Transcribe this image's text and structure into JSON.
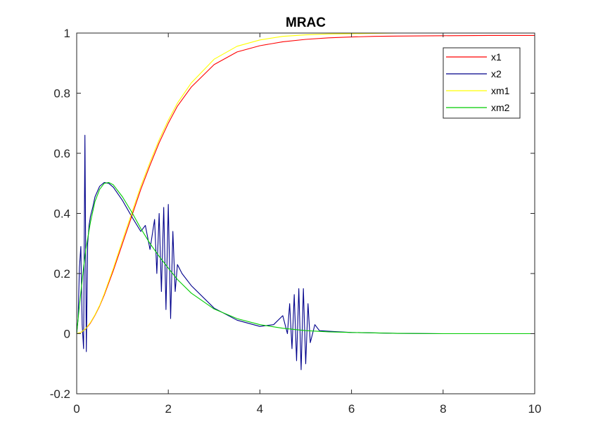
{
  "figure": {
    "background": "#ffffff",
    "axes_color": "#262626"
  },
  "chart_data": {
    "type": "line",
    "title": "MRAC",
    "xlabel": "",
    "ylabel": "",
    "xlim": [
      0,
      10
    ],
    "ylim": [
      -0.2,
      1
    ],
    "xticks": [
      0,
      2,
      4,
      6,
      8,
      10
    ],
    "yticks": [
      -0.2,
      0,
      0.2,
      0.4,
      0.6,
      0.8,
      1
    ],
    "xtick_labels": [
      "0",
      "2",
      "4",
      "6",
      "8",
      "10"
    ],
    "ytick_labels": [
      "-0.2",
      "0",
      "0.2",
      "0.4",
      "0.6",
      "0.8",
      "1"
    ],
    "grid": false,
    "legend_position": "top-right",
    "series": [
      {
        "name": "x1",
        "color": "#ff0000",
        "x": [
          0,
          0.1,
          0.2,
          0.3,
          0.4,
          0.5,
          0.6,
          0.8,
          1.0,
          1.2,
          1.4,
          1.6,
          1.8,
          2.0,
          2.2,
          2.5,
          3.0,
          3.5,
          4.0,
          4.5,
          5.0,
          5.5,
          6.0,
          6.5,
          7.0,
          8.0,
          9.0,
          10.0
        ],
        "y": [
          0,
          0.005,
          0.016,
          0.035,
          0.061,
          0.092,
          0.128,
          0.21,
          0.3,
          0.39,
          0.48,
          0.56,
          0.635,
          0.7,
          0.757,
          0.82,
          0.895,
          0.937,
          0.958,
          0.971,
          0.979,
          0.984,
          0.987,
          0.989,
          0.99,
          0.991,
          0.992,
          0.992
        ]
      },
      {
        "name": "x2",
        "color": "#00008b",
        "x": [
          0,
          0.03,
          0.06,
          0.09,
          0.12,
          0.15,
          0.18,
          0.21,
          0.24,
          0.27,
          0.3,
          0.35,
          0.4,
          0.5,
          0.6,
          0.7,
          0.8,
          1.0,
          1.2,
          1.4,
          1.5,
          1.6,
          1.7,
          1.75,
          1.8,
          1.85,
          1.9,
          1.95,
          2.0,
          2.05,
          2.1,
          2.15,
          2.2,
          2.3,
          2.5,
          3.0,
          3.5,
          4.0,
          4.3,
          4.5,
          4.6,
          4.65,
          4.7,
          4.75,
          4.8,
          4.85,
          4.9,
          4.95,
          5.0,
          5.05,
          5.1,
          5.2,
          5.3,
          5.5,
          6.0,
          7.0,
          8.0,
          9.0,
          10.0
        ],
        "y": [
          0,
          0.05,
          0.22,
          0.29,
          0.03,
          -0.05,
          0.66,
          -0.06,
          0.3,
          0.36,
          0.39,
          0.42,
          0.455,
          0.49,
          0.503,
          0.5,
          0.487,
          0.443,
          0.39,
          0.34,
          0.36,
          0.28,
          0.38,
          0.2,
          0.4,
          0.14,
          0.42,
          0.08,
          0.43,
          0.05,
          0.34,
          0.14,
          0.23,
          0.2,
          0.16,
          0.085,
          0.045,
          0.024,
          0.03,
          0.06,
          0.0,
          0.1,
          -0.05,
          0.13,
          -0.09,
          0.15,
          -0.12,
          0.15,
          -0.1,
          0.1,
          -0.03,
          0.03,
          0.01,
          0.008,
          0.004,
          0.001,
          0.0,
          0.0,
          0.0
        ]
      },
      {
        "name": "xm1",
        "color": "#ffff00",
        "x": [
          0,
          0.1,
          0.2,
          0.3,
          0.4,
          0.5,
          0.6,
          0.8,
          1.0,
          1.2,
          1.4,
          1.6,
          1.8,
          2.0,
          2.2,
          2.5,
          3.0,
          3.5,
          4.0,
          4.5,
          5.0,
          5.5,
          6.0,
          6.5,
          7.0,
          8.0,
          9.0,
          10.0
        ],
        "y": [
          0,
          0.005,
          0.017,
          0.037,
          0.063,
          0.094,
          0.132,
          0.217,
          0.31,
          0.4,
          0.49,
          0.57,
          0.645,
          0.71,
          0.767,
          0.834,
          0.913,
          0.956,
          0.977,
          0.989,
          0.994,
          0.997,
          0.998,
          0.999,
          1.0,
          1.0,
          1.0,
          1.0
        ]
      },
      {
        "name": "xm2",
        "color": "#00cc00",
        "x": [
          0,
          0.05,
          0.1,
          0.15,
          0.2,
          0.3,
          0.4,
          0.5,
          0.6,
          0.7,
          0.8,
          1.0,
          1.2,
          1.4,
          1.6,
          1.8,
          2.0,
          2.2,
          2.5,
          3.0,
          3.5,
          4.0,
          4.5,
          5.0,
          5.5,
          6.0,
          7.0,
          8.0,
          9.0,
          10.0
        ],
        "y": [
          0,
          0.08,
          0.15,
          0.22,
          0.28,
          0.37,
          0.44,
          0.48,
          0.5,
          0.503,
          0.495,
          0.455,
          0.405,
          0.35,
          0.3,
          0.257,
          0.218,
          0.18,
          0.135,
          0.082,
          0.05,
          0.03,
          0.018,
          0.01,
          0.006,
          0.004,
          0.001,
          0.0,
          0.0,
          0.0
        ]
      }
    ]
  }
}
